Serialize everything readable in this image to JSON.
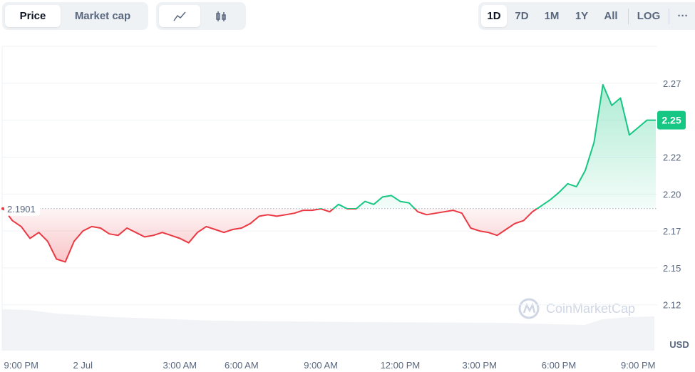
{
  "toolbar": {
    "metric_tabs": [
      "Price",
      "Market cap"
    ],
    "ranges": [
      "1D",
      "7D",
      "1M",
      "1Y",
      "All"
    ],
    "scale": "LOG",
    "more": "···"
  },
  "watermark": "CoinMarketCap",
  "chart_data": {
    "type": "line",
    "unit": "USD",
    "categories": [
      null,
      null,
      "9:00 PM",
      null,
      null,
      null,
      null,
      null,
      null,
      "2 Jul",
      null,
      null,
      null,
      null,
      null,
      null,
      null,
      null,
      null,
      null,
      "3:00 AM",
      null,
      null,
      null,
      null,
      null,
      null,
      "6:00 AM",
      null,
      null,
      null,
      null,
      null,
      null,
      null,
      null,
      "9:00 AM",
      null,
      null,
      null,
      null,
      null,
      null,
      null,
      null,
      "12:00 PM",
      null,
      null,
      null,
      null,
      null,
      null,
      null,
      null,
      "3:00 PM",
      null,
      null,
      null,
      null,
      null,
      null,
      null,
      null,
      "6:00 PM",
      null,
      null,
      null,
      null,
      null,
      null,
      null,
      null,
      "9:00 PM",
      null,
      null
    ],
    "values": [
      2.19,
      2.182,
      2.178,
      2.17,
      2.174,
      2.168,
      2.156,
      2.154,
      2.168,
      2.175,
      2.178,
      2.177,
      2.173,
      2.172,
      2.177,
      2.174,
      2.171,
      2.172,
      2.174,
      2.172,
      2.17,
      2.167,
      2.174,
      2.178,
      2.176,
      2.174,
      2.176,
      2.177,
      2.18,
      2.185,
      2.186,
      2.185,
      2.186,
      2.187,
      2.189,
      2.189,
      2.19,
      2.188,
      2.193,
      2.19,
      2.19,
      2.195,
      2.193,
      2.198,
      2.199,
      2.195,
      2.194,
      2.188,
      2.186,
      2.187,
      2.188,
      2.189,
      2.187,
      2.177,
      2.175,
      2.174,
      2.172,
      2.176,
      2.18,
      2.182,
      2.188,
      2.192,
      2.196,
      2.201,
      2.207,
      2.205,
      2.216,
      2.235,
      2.274,
      2.26,
      2.265,
      2.24,
      2.245,
      2.25,
      2.25
    ],
    "baseline": 2.1901,
    "up_color": "#16c784",
    "down_color": "#ea3943",
    "ylim": [
      2.094,
      2.3
    ],
    "yticks": [
      {
        "value": 2.125,
        "label": "2.12"
      },
      2.15,
      {
        "value": 2.175,
        "label": "2.17"
      },
      {
        "value": 2.2,
        "label": "2.20"
      },
      {
        "value": 2.225,
        "label": "2.22"
      },
      2.25,
      {
        "value": 2.275,
        "label": "2.27"
      }
    ],
    "grid": true
  }
}
